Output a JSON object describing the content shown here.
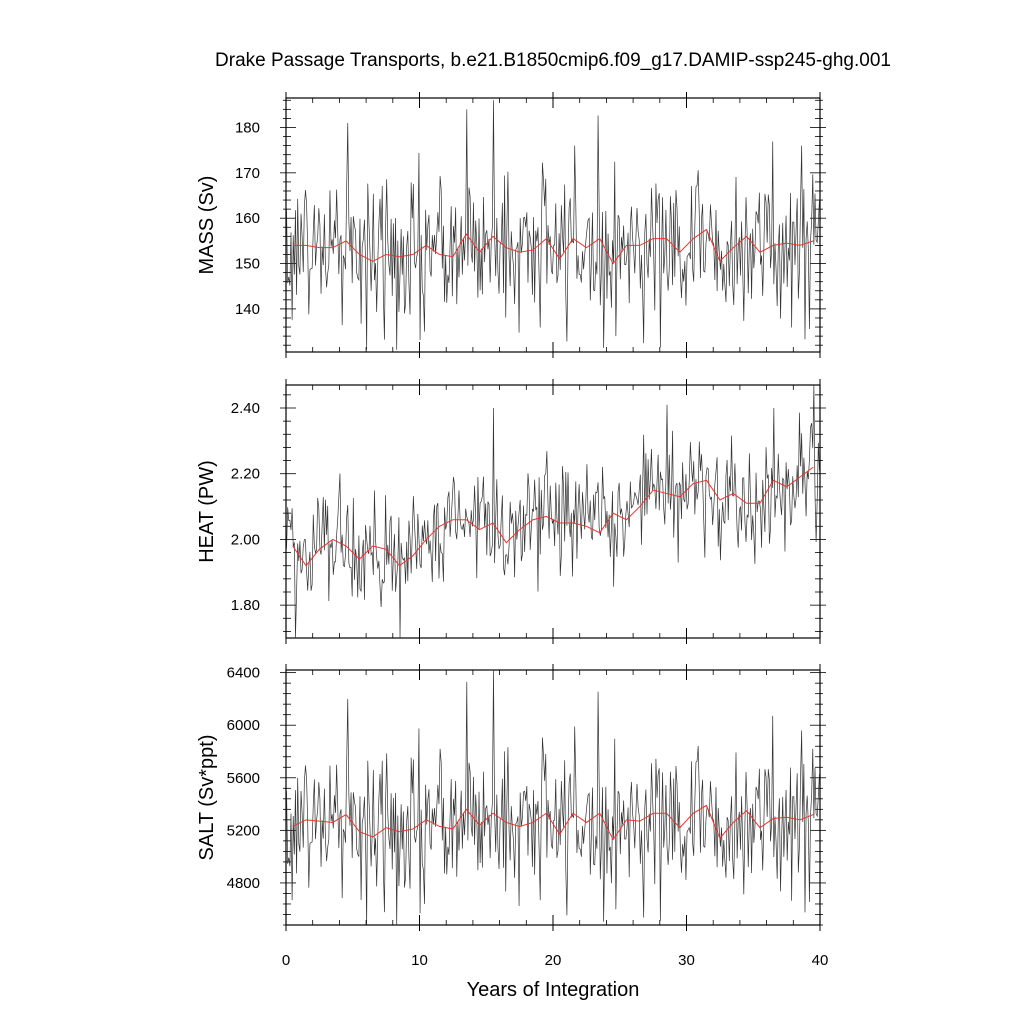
{
  "chart_data": {
    "type": "line",
    "title": "Drake Passage Transports, b.e21.B1850cmip6.f09_g17.DAMIP-ssp245-ghg.001",
    "xlabel": "Years of Integration",
    "x_ticks": [
      "0",
      "10",
      "20",
      "30",
      "40"
    ],
    "xlim": [
      0,
      40
    ],
    "grid": false,
    "legend": "none",
    "colors": {
      "monthly": "#333333",
      "annual": "#e8352f",
      "axes": "#000000"
    },
    "panels": [
      {
        "ylabel": "MASS (Sv)",
        "ylim": [
          130.5,
          186.5
        ],
        "y_ticks": [
          140,
          150,
          160,
          170,
          180
        ],
        "y_tick_labels": [
          "140",
          "150",
          "160",
          "170",
          "180"
        ],
        "monthly_summary": {
          "mean": 153,
          "spread": 8.5,
          "min": 131,
          "max": 186,
          "spikes": [
            [
              4.6,
              181
            ],
            [
              13.5,
              184
            ],
            [
              15.5,
              186
            ],
            [
              21.6,
              176
            ],
            [
              38.6,
              176
            ],
            [
              8.3,
              131
            ],
            [
              24.7,
              134
            ],
            [
              10.4,
              135
            ]
          ]
        },
        "annual_x": [
          0.5,
          1.5,
          2.5,
          3.5,
          4.5,
          5.5,
          6.5,
          7.5,
          8.5,
          9.5,
          10.5,
          11.5,
          12.5,
          13.5,
          14.5,
          15.5,
          16.5,
          17.5,
          18.5,
          19.5,
          20.5,
          21.5,
          22.5,
          23.5,
          24.5,
          25.5,
          26.5,
          27.5,
          28.5,
          29.5,
          30.5,
          31.5,
          32.5,
          33.5,
          34.5,
          35.5,
          36.5,
          37.5,
          38.5,
          39.5
        ],
        "annual_y": [
          154,
          154,
          153.5,
          153.5,
          155,
          152,
          150.5,
          152,
          151.5,
          152,
          154,
          152,
          151.5,
          156.5,
          152.5,
          156,
          153.5,
          152.5,
          153,
          155.5,
          151,
          155.5,
          153.5,
          155.5,
          150,
          154,
          154,
          155.5,
          155.5,
          152.5,
          155.5,
          157.5,
          150.5,
          153.5,
          156,
          152.5,
          154,
          154.5,
          154,
          155
        ]
      },
      {
        "ylabel": "HEAT (PW)",
        "ylim": [
          1.7,
          2.47
        ],
        "y_ticks": [
          1.8,
          2.0,
          2.2,
          2.4
        ],
        "y_tick_labels": [
          "1.80",
          "2.00",
          "2.20",
          "2.40"
        ],
        "monthly_summary": {
          "mean": "follows annual",
          "spread": 0.09,
          "min": 1.7,
          "max": 2.47,
          "spikes": [
            [
              15.5,
              2.4
            ],
            [
              0.7,
              1.7
            ],
            [
              8.5,
              1.7
            ],
            [
              39.5,
              2.47
            ],
            [
              36.5,
              2.4
            ],
            [
              28.5,
              2.41
            ]
          ]
        },
        "annual_x": [
          0.5,
          1.5,
          2.5,
          3.5,
          4.5,
          5.5,
          6.5,
          7.5,
          8.5,
          9.5,
          10.5,
          11.5,
          12.5,
          13.5,
          14.5,
          15.5,
          16.5,
          17.5,
          18.5,
          19.5,
          20.5,
          21.5,
          22.5,
          23.5,
          24.5,
          25.5,
          26.5,
          27.5,
          28.5,
          29.5,
          30.5,
          31.5,
          32.5,
          33.5,
          34.5,
          35.5,
          36.5,
          37.5,
          38.5,
          39.5
        ],
        "annual_y": [
          1.98,
          1.92,
          1.97,
          2.0,
          1.98,
          1.94,
          1.98,
          1.97,
          1.92,
          1.95,
          2.0,
          2.04,
          2.06,
          2.06,
          2.03,
          2.05,
          1.99,
          2.03,
          2.06,
          2.07,
          2.05,
          2.05,
          2.04,
          2.02,
          2.08,
          2.06,
          2.1,
          2.15,
          2.14,
          2.13,
          2.17,
          2.18,
          2.12,
          2.14,
          2.11,
          2.11,
          2.18,
          2.16,
          2.19,
          2.22
        ]
      },
      {
        "ylabel": "SALT (Sv*ppt)",
        "ylim": [
          4480,
          6420
        ],
        "y_ticks": [
          4800,
          5200,
          5600,
          6000,
          6400
        ],
        "y_tick_labels": [
          "4800",
          "5200",
          "5600",
          "6000",
          "6400"
        ],
        "monthly_summary": {
          "mean": 5260,
          "spread": 290,
          "min": 4480,
          "max": 6420,
          "spikes": [
            [
              4.6,
              6200
            ],
            [
              13.5,
              6330
            ],
            [
              15.5,
              6420
            ],
            [
              21.6,
              5990
            ],
            [
              38.6,
              5960
            ],
            [
              8.3,
              4480
            ],
            [
              24.7,
              4600
            ],
            [
              10.4,
              4640
            ]
          ]
        },
        "annual_x": [
          0.5,
          1.5,
          2.5,
          3.5,
          4.5,
          5.5,
          6.5,
          7.5,
          8.5,
          9.5,
          10.5,
          11.5,
          12.5,
          13.5,
          14.5,
          15.5,
          16.5,
          17.5,
          18.5,
          19.5,
          20.5,
          21.5,
          22.5,
          23.5,
          24.5,
          25.5,
          26.5,
          27.5,
          28.5,
          29.5,
          30.5,
          31.5,
          32.5,
          33.5,
          34.5,
          35.5,
          36.5,
          37.5,
          38.5,
          39.5
        ],
        "annual_y": [
          5230,
          5280,
          5270,
          5260,
          5320,
          5190,
          5150,
          5220,
          5190,
          5210,
          5280,
          5230,
          5210,
          5360,
          5240,
          5330,
          5260,
          5230,
          5260,
          5330,
          5170,
          5330,
          5260,
          5330,
          5130,
          5280,
          5270,
          5330,
          5330,
          5220,
          5330,
          5390,
          5140,
          5260,
          5350,
          5220,
          5290,
          5300,
          5280,
          5320
        ]
      }
    ]
  }
}
